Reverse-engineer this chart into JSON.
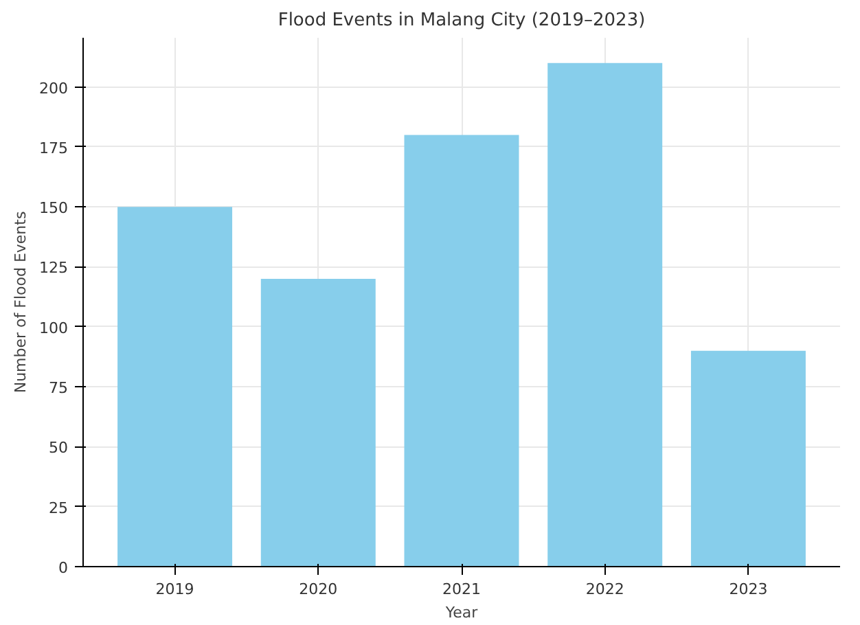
{
  "chart_data": {
    "type": "bar",
    "title": "Flood Events in Malang City (2019–2023)",
    "xlabel": "Year",
    "ylabel": "Number of Flood Events",
    "categories": [
      "2019",
      "2020",
      "2021",
      "2022",
      "2023"
    ],
    "values": [
      150,
      120,
      180,
      210,
      90
    ],
    "color": "#87ceeb",
    "ylim": [
      0,
      220.5
    ],
    "yticks": [
      0,
      25,
      50,
      75,
      100,
      125,
      150,
      175,
      200
    ],
    "grid": true
  }
}
